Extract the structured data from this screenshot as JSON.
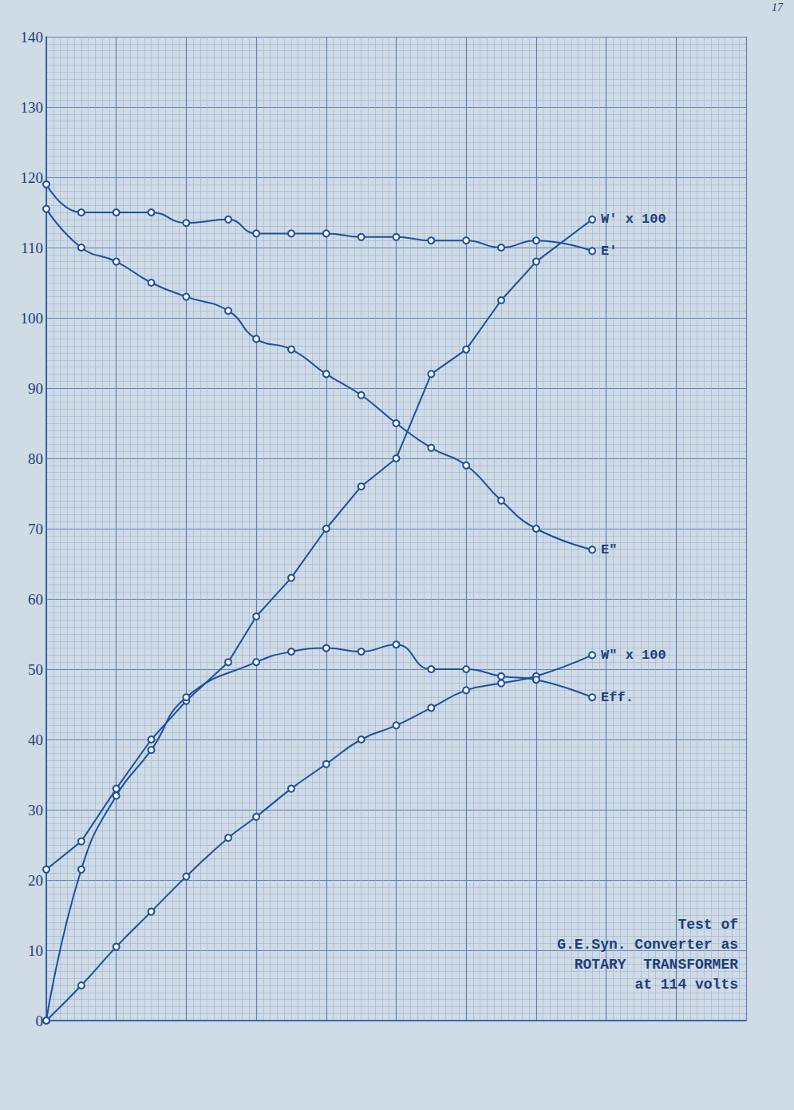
{
  "chart_data": {
    "type": "line",
    "title": "Test of\nG.E.Syn. Converter as\nROTARY  TRANSFORMER\nat 114 volts",
    "annotations": [
      "17"
    ],
    "x": [
      0,
      5,
      10,
      15,
      20,
      26,
      30,
      35,
      40,
      45,
      50,
      55,
      60,
      65,
      70,
      78
    ],
    "series": [
      {
        "name": "W' x 100",
        "color": "#1d4f9e",
        "line_style": "straight",
        "values": [
          21.5,
          25.5,
          33,
          40,
          45.5,
          51,
          57.5,
          63,
          70,
          76,
          80,
          92,
          95.5,
          102.5,
          108,
          114
        ]
      },
      {
        "name": "E'",
        "color": "#1d4f9e",
        "line_style": "smooth",
        "values": [
          119,
          115,
          115,
          115,
          113.5,
          114,
          112,
          112,
          112,
          111.5,
          111.5,
          111,
          111,
          110,
          111,
          109.5
        ]
      },
      {
        "name": "E\"",
        "color": "#1d4f9e",
        "line_style": "smooth",
        "values": [
          115.5,
          110,
          108,
          105,
          103,
          101,
          97,
          95.5,
          92,
          89,
          85,
          81.5,
          79,
          74,
          70,
          67
        ]
      },
      {
        "name": "W\" x 100",
        "color": "#1d4f9e",
        "line_style": "smooth",
        "values": [
          0,
          5,
          10.5,
          15.5,
          20.5,
          26,
          29,
          33,
          36.5,
          40,
          42,
          44.5,
          47,
          48,
          49,
          52
        ]
      },
      {
        "name": "Eff.",
        "color": "#1d4f9e",
        "line_style": "smooth",
        "values": [
          0,
          21.5,
          32,
          38.5,
          46,
          null,
          51,
          52.5,
          53,
          52.5,
          53.5,
          50,
          50,
          49,
          48.5,
          46
        ]
      }
    ],
    "marker": "circle",
    "xlim": [
      0,
      100
    ],
    "xticks": [
      0,
      10,
      20,
      30,
      40,
      50,
      60,
      70,
      80,
      90,
      100
    ],
    "ylim": [
      0,
      140
    ],
    "yticks": [
      0,
      10,
      20,
      30,
      40,
      50,
      60,
      70,
      80,
      90,
      100,
      110,
      120,
      130,
      140
    ],
    "tick_labels": "y",
    "grid": true
  }
}
